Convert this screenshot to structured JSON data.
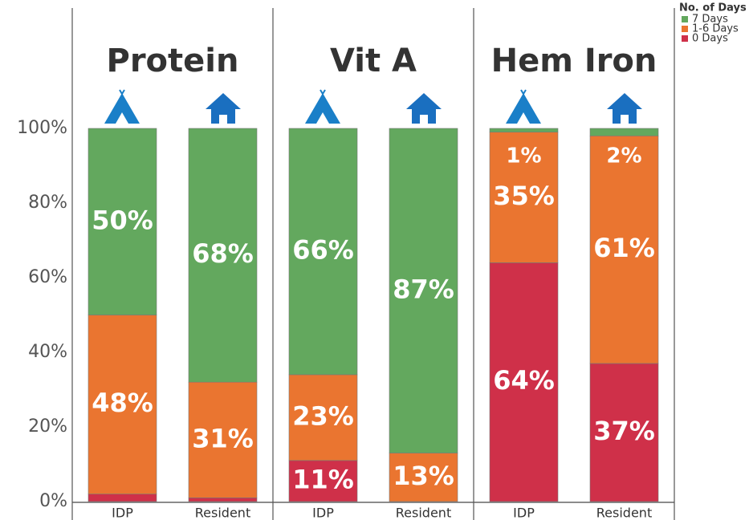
{
  "chart_data": {
    "type": "bar",
    "stacked": true,
    "legend_title": "No. of Days",
    "ylim": [
      0,
      100
    ],
    "yticks": [
      {
        "value": 0,
        "label": "0%"
      },
      {
        "value": 20,
        "label": "20%"
      },
      {
        "value": 40,
        "label": "40%"
      },
      {
        "value": 60,
        "label": "60%"
      },
      {
        "value": 80,
        "label": "80%"
      },
      {
        "value": 100,
        "label": "100%"
      }
    ],
    "series": [
      {
        "name": "7 Days",
        "color": "#63a85e"
      },
      {
        "name": "1-6 Days",
        "color": "#ea7530"
      },
      {
        "name": "0 Days",
        "color": "#cf3049"
      }
    ],
    "panels": [
      {
        "title": "Protein",
        "categories": [
          "IDP",
          "Resident"
        ],
        "values": [
          [
            50,
            68
          ],
          [
            48,
            31
          ],
          [
            2,
            1
          ]
        ],
        "value_labels": [
          [
            "50%",
            "68%"
          ],
          [
            "48%",
            "31%"
          ],
          [
            "2%",
            "1%"
          ]
        ]
      },
      {
        "title": "Vit A",
        "categories": [
          "IDP",
          "Resident"
        ],
        "values": [
          [
            66,
            87
          ],
          [
            23,
            13
          ],
          [
            11,
            0
          ]
        ],
        "value_labels": [
          [
            "66%",
            "87%"
          ],
          [
            "23%",
            "13%"
          ],
          [
            "11%",
            null
          ]
        ]
      },
      {
        "title": "Hem Iron",
        "categories": [
          "IDP",
          "Resident"
        ],
        "values": [
          [
            1,
            2
          ],
          [
            35,
            61
          ],
          [
            64,
            37
          ]
        ],
        "value_labels": [
          [
            "1%",
            "2%"
          ],
          [
            "35%",
            "61%"
          ],
          [
            "64%",
            "37%"
          ]
        ]
      }
    ]
  }
}
